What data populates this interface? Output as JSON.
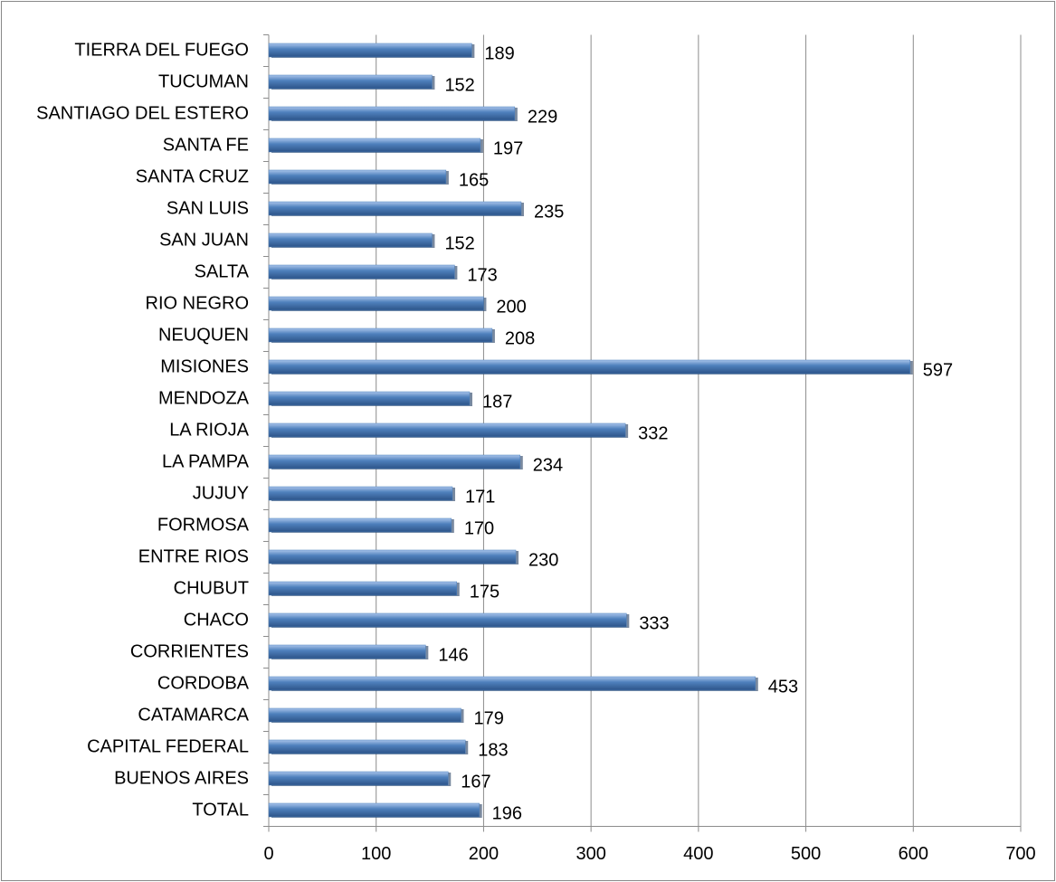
{
  "chart_data": {
    "type": "bar",
    "orientation": "horizontal",
    "categories": [
      "TIERRA DEL FUEGO",
      "TUCUMAN",
      "SANTIAGO DEL ESTERO",
      "SANTA FE",
      "SANTA CRUZ",
      "SAN LUIS",
      "SAN JUAN",
      "SALTA",
      "RIO NEGRO",
      "NEUQUEN",
      "MISIONES",
      "MENDOZA",
      "LA RIOJA",
      "LA PAMPA",
      "JUJUY",
      "FORMOSA",
      "ENTRE RIOS",
      "CHUBUT",
      "CHACO",
      "CORRIENTES",
      "CORDOBA",
      "CATAMARCA",
      "CAPITAL FEDERAL",
      "BUENOS AIRES",
      "TOTAL"
    ],
    "values": [
      189,
      152,
      229,
      197,
      165,
      235,
      152,
      173,
      200,
      208,
      597,
      187,
      332,
      234,
      171,
      170,
      230,
      175,
      333,
      146,
      453,
      179,
      183,
      167,
      196
    ],
    "color": "#4f81bd",
    "xlim": [
      0,
      700
    ],
    "xticks": [
      0,
      100,
      200,
      300,
      400,
      500,
      600,
      700
    ],
    "grid": true
  }
}
